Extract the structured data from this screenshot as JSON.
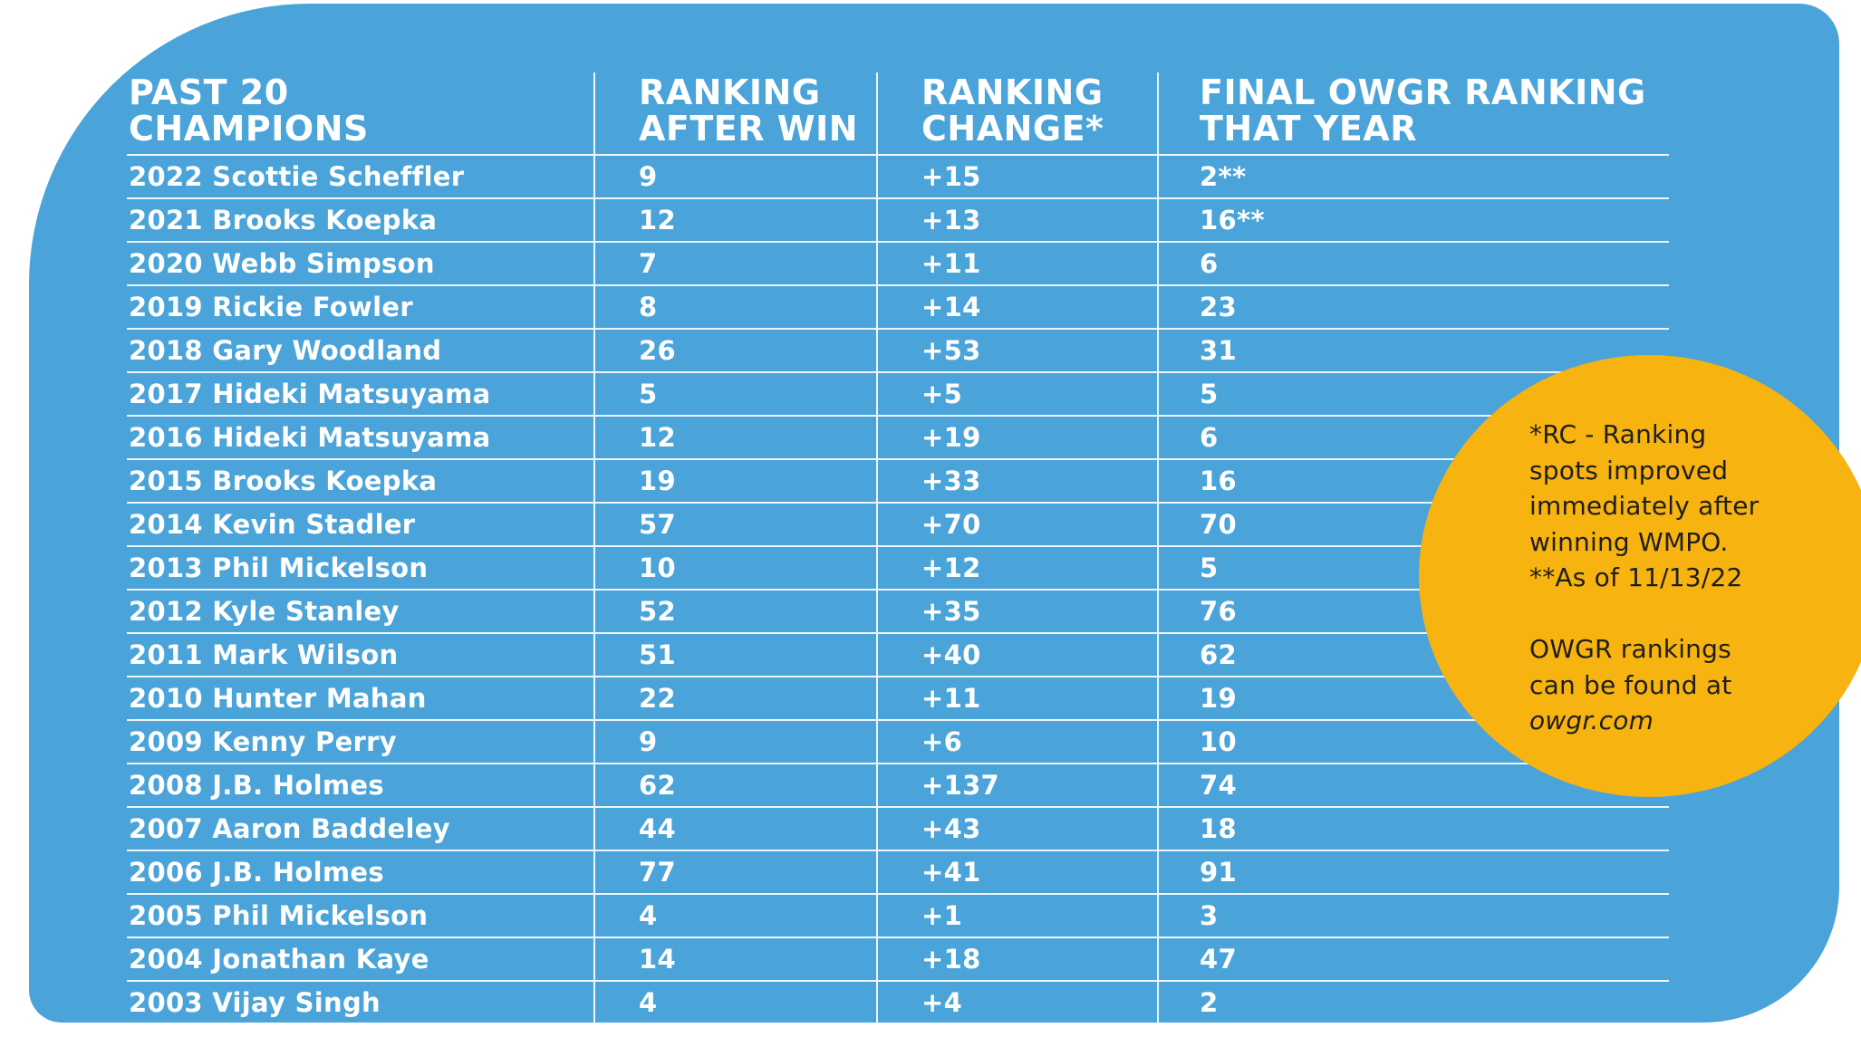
{
  "columns": [
    "PAST 20\nCHAMPIONS",
    "RANKING\nAFTER WIN",
    "RANKING\nCHANGE*",
    "FINAL OWGR RANKING\nTHAT YEAR"
  ],
  "rows": [
    {
      "champion": "2022 Scottie Scheffler",
      "after_win": "9",
      "change": "+15",
      "final": "2**"
    },
    {
      "champion": "2021 Brooks Koepka",
      "after_win": "12",
      "change": "+13",
      "final": "16**"
    },
    {
      "champion": "2020 Webb Simpson",
      "after_win": "7",
      "change": "+11",
      "final": "6"
    },
    {
      "champion": "2019 Rickie Fowler",
      "after_win": "8",
      "change": "+14",
      "final": "23"
    },
    {
      "champion": "2018 Gary Woodland",
      "after_win": "26",
      "change": "+53",
      "final": "31"
    },
    {
      "champion": "2017 Hideki Matsuyama",
      "after_win": "5",
      "change": "+5",
      "final": "5"
    },
    {
      "champion": "2016 Hideki Matsuyama",
      "after_win": "12",
      "change": "+19",
      "final": "6"
    },
    {
      "champion": "2015 Brooks Koepka",
      "after_win": "19",
      "change": "+33",
      "final": "16"
    },
    {
      "champion": "2014 Kevin Stadler",
      "after_win": "57",
      "change": "+70",
      "final": "70"
    },
    {
      "champion": "2013 Phil Mickelson",
      "after_win": "10",
      "change": "+12",
      "final": "5"
    },
    {
      "champion": "2012 Kyle Stanley",
      "after_win": "52",
      "change": "+35",
      "final": "76"
    },
    {
      "champion": "2011 Mark Wilson",
      "after_win": "51",
      "change": "+40",
      "final": "62"
    },
    {
      "champion": "2010 Hunter Mahan",
      "after_win": "22",
      "change": "+11",
      "final": "19"
    },
    {
      "champion": "2009 Kenny Perry",
      "after_win": "9",
      "change": "+6",
      "final": "10"
    },
    {
      "champion": "2008 J.B. Holmes",
      "after_win": "62",
      "change": "+137",
      "final": "74"
    },
    {
      "champion": "2007 Aaron Baddeley",
      "after_win": "44",
      "change": "+43",
      "final": "18"
    },
    {
      "champion": "2006 J.B. Holmes",
      "after_win": "77",
      "change": "+41",
      "final": "91"
    },
    {
      "champion": "2005 Phil Mickelson",
      "after_win": "4",
      "change": "+1",
      "final": "3"
    },
    {
      "champion": "2004 Jonathan Kaye",
      "after_win": "14",
      "change": "+18",
      "final": "47"
    },
    {
      "champion": "2003 Vijay Singh",
      "after_win": "4",
      "change": "+4",
      "final": "2"
    }
  ],
  "note": {
    "lines": [
      "*RC - Ranking",
      "spots improved",
      "immediately after",
      "winning WMPO.",
      "**As of 11/13/22"
    ],
    "lines2": [
      "OWGR rankings",
      "can be found at"
    ],
    "link": "owgr.com"
  },
  "colors": {
    "panel": "#4aa3d9",
    "bubble": "#f7b30f",
    "text": "#ffffff",
    "note_text": "#1e1e1e"
  }
}
